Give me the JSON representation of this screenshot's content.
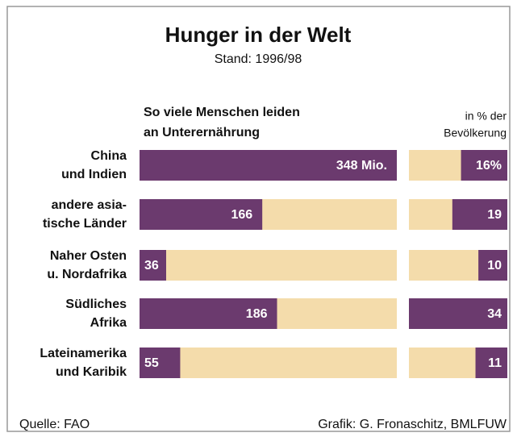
{
  "chart_data": [
    {
      "type": "bar",
      "title": "Hunger in der Welt",
      "subtitle": "Stand: 1996/98",
      "header": [
        "So viele Menschen leiden",
        "an Unterernährung"
      ],
      "categories": [
        [
          "China",
          "und Indien"
        ],
        [
          "andere asia-",
          "tische Länder"
        ],
        [
          "Naher Osten",
          "u. Nordafrika"
        ],
        [
          "Südliches",
          "Afrika"
        ],
        [
          "Lateinamerika",
          "und Karibik"
        ]
      ],
      "values": [
        348,
        166,
        36,
        186,
        55
      ],
      "value_labels": [
        "348 Mio.",
        "166",
        "36",
        "186",
        "55"
      ],
      "xlim": [
        0,
        348
      ],
      "color": "#6b3a6e",
      "track_color": "#f4dcab",
      "direction": "left-to-right"
    },
    {
      "type": "bar",
      "header": [
        "in % der",
        "Bevölkerung"
      ],
      "values": [
        16,
        19,
        10,
        34,
        11
      ],
      "value_labels": [
        "16%",
        "19",
        "10",
        "34",
        "11"
      ],
      "xlim": [
        0,
        34
      ],
      "color": "#6b3a6e",
      "track_color": "#f4dcab",
      "direction": "right-to-left"
    }
  ],
  "footer": {
    "source": "Quelle: FAO",
    "credit": "Grafik: G. Fronaschitz, BMLFUW"
  }
}
